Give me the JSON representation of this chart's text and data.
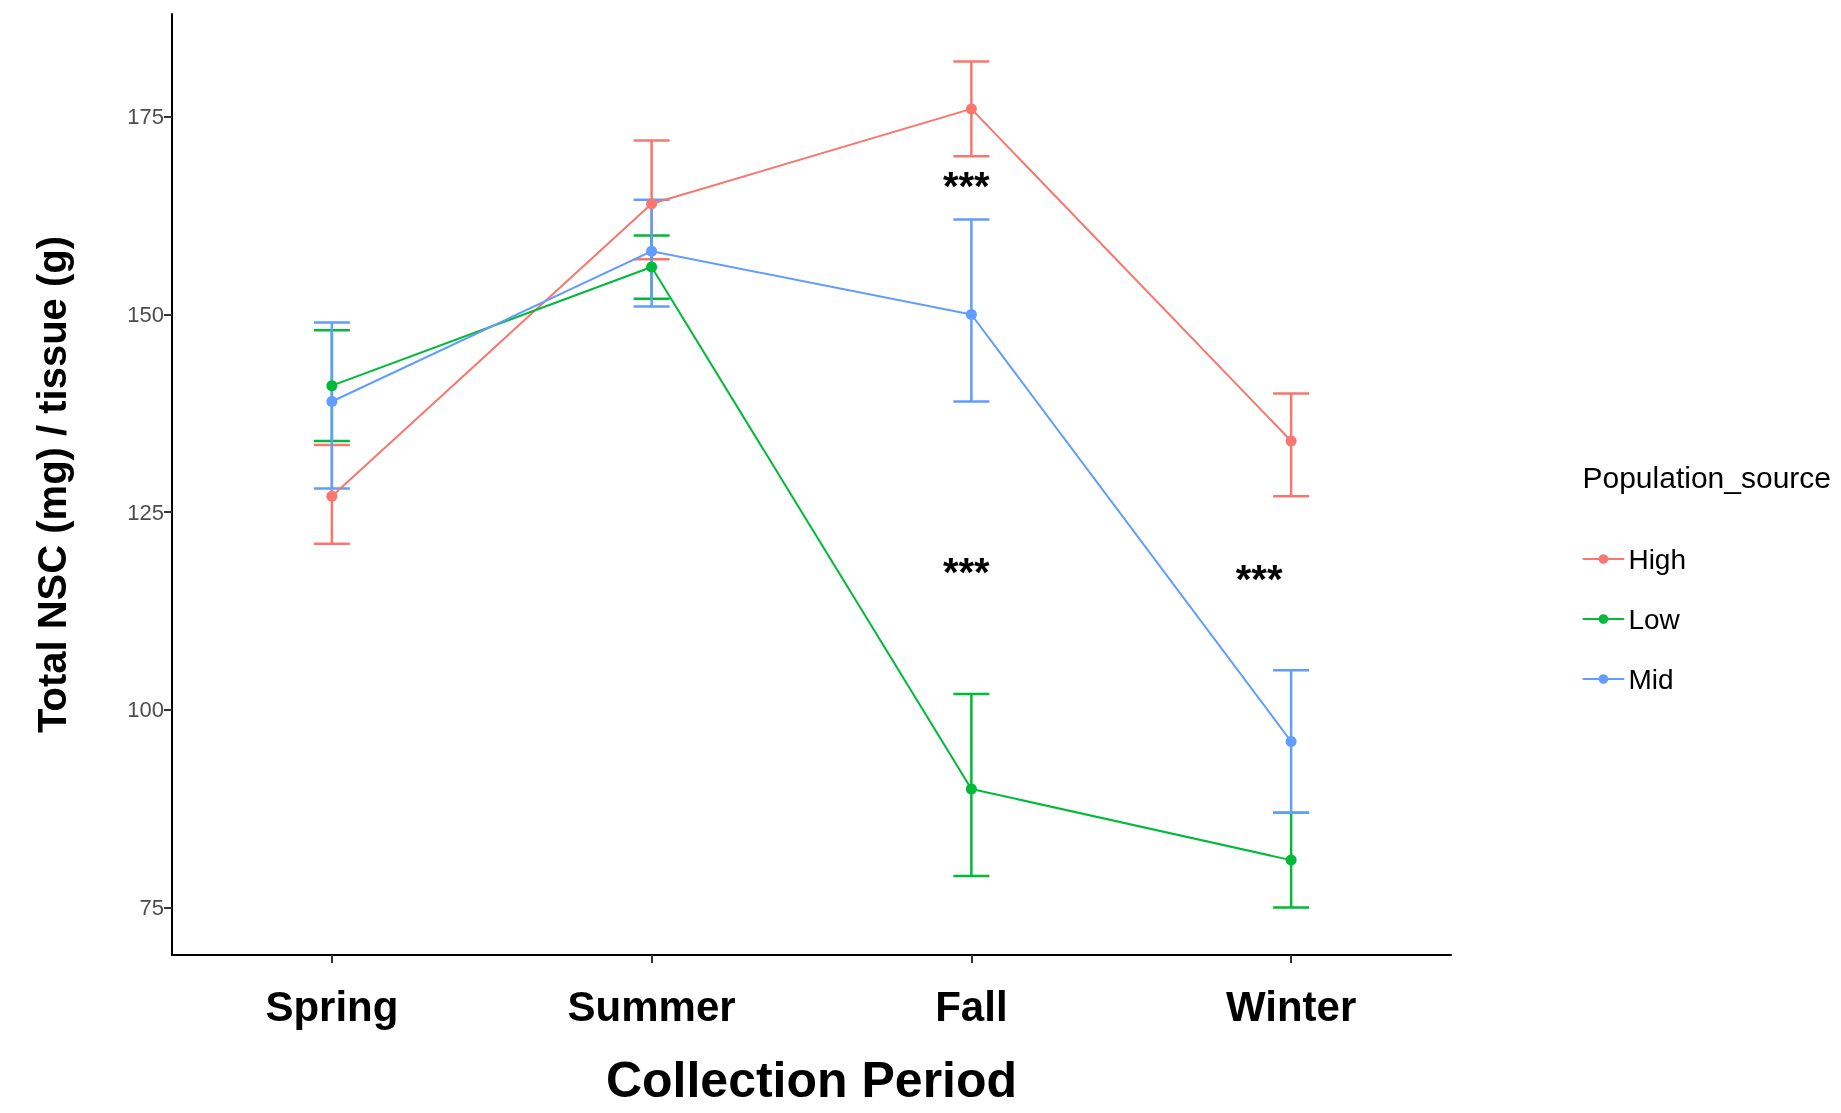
{
  "chart_data": {
    "type": "line",
    "xlabel": "Collection Period",
    "ylabel": "Total NSC (mg) / tissue (g)",
    "legend_title": "Population_source",
    "categories": [
      "Spring",
      "Summer",
      "Fall",
      "Winter"
    ],
    "series": [
      {
        "name": "High",
        "color": "#f8766d",
        "values": [
          127,
          164,
          176,
          134
        ],
        "errors": [
          [
            121,
            133.5
          ],
          [
            157,
            172
          ],
          [
            170,
            182
          ],
          [
            127,
            140
          ]
        ]
      },
      {
        "name": "Low",
        "color": "#00ba38",
        "values": [
          141,
          156,
          90,
          81
        ],
        "errors": [
          [
            134,
            148
          ],
          [
            152,
            160
          ],
          [
            79,
            102
          ],
          [
            75,
            87
          ]
        ]
      },
      {
        "name": "Mid",
        "color": "#619cff",
        "values": [
          139,
          158,
          150,
          96
        ],
        "errors": [
          [
            128,
            149
          ],
          [
            151,
            164.5
          ],
          [
            139,
            162
          ],
          [
            87,
            105
          ]
        ]
      }
    ],
    "ylim": [
      69,
      188
    ],
    "yticks": [
      75,
      100,
      125,
      150,
      175
    ],
    "grid": false,
    "legend": "right",
    "marker": "circle",
    "line_style": "solid",
    "annotations": [
      "***",
      "***",
      "***"
    ]
  }
}
